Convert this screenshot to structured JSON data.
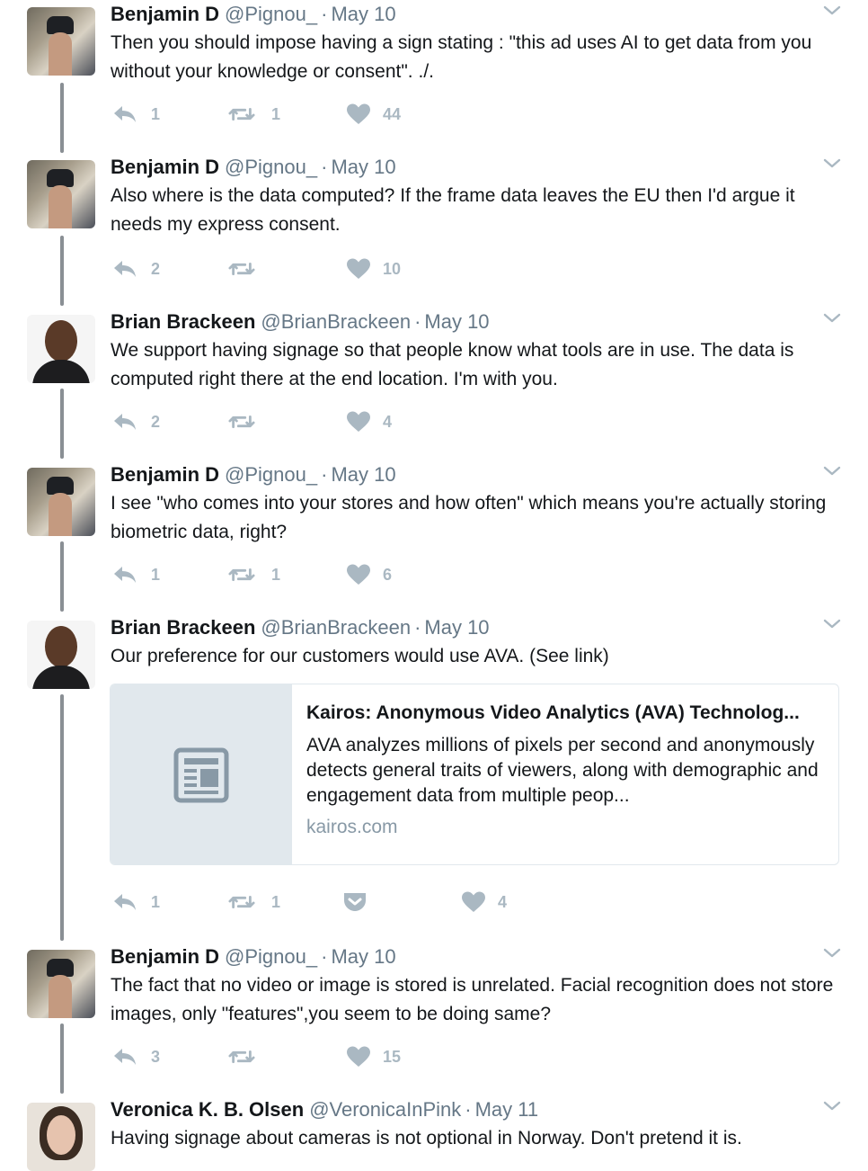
{
  "tweets": [
    {
      "name": "Benjamin D",
      "handle": "@Pignou_",
      "date": "May 10",
      "text": "Then you should impose having a sign stating : \"this ad uses AI to get data from you without your knowledge or consent\". ./.",
      "replies": "1",
      "retweets": "1",
      "likes": "44"
    },
    {
      "name": "Benjamin D",
      "handle": "@Pignou_",
      "date": "May 10",
      "text": "Also where is the data computed? If the frame data leaves the EU then I'd argue it needs my express consent.",
      "replies": "2",
      "retweets": "",
      "likes": "10"
    },
    {
      "name": "Brian Brackeen",
      "handle": "@BrianBrackeen",
      "date": "May 10",
      "text": "We support having signage so that people know what tools are in use. The data is computed right there at the end location. I'm with you.",
      "replies": "2",
      "retweets": "",
      "likes": "4"
    },
    {
      "name": "Benjamin D",
      "handle": "@Pignou_",
      "date": "May 10",
      "text": "I see \"who comes into your stores and how often\" which means you're actually storing biometric data, right?",
      "replies": "1",
      "retweets": "1",
      "likes": "6"
    },
    {
      "name": "Brian Brackeen",
      "handle": "@BrianBrackeen",
      "date": "May 10",
      "text": "Our preference for our customers would use AVA. (See link)",
      "replies": "1",
      "retweets": "1",
      "likes": "4",
      "card": {
        "title": "Kairos: Anonymous Video Analytics (AVA) Technolog...",
        "description": "AVA analyzes millions of pixels per second and anonymously detects general traits of viewers, along with demographic and engagement data from multiple peop...",
        "domain": "kairos.com"
      }
    },
    {
      "name": "Benjamin D",
      "handle": "@Pignou_",
      "date": "May 10",
      "text": "The fact that no video or image is stored is unrelated. Facial recognition does not store images, only \"features\",you seem to be doing same?",
      "replies": "3",
      "retweets": "",
      "likes": "15"
    },
    {
      "name": "Veronica K. B. Olsen",
      "handle": "@VeronicaInPink",
      "date": "May 11",
      "text": "Having signage about cameras is not optional in Norway. Don't pretend it is."
    }
  ],
  "separator": "·",
  "icons": {
    "reply": "reply-icon",
    "retweet": "retweet-icon",
    "like": "heart-icon",
    "pocket": "pocket-icon",
    "more": "chevron-down-icon",
    "card_placeholder": "article-icon"
  },
  "colors": {
    "action_gray": "#aab8c2",
    "meta_gray": "#657786",
    "thread_line": "#8a8f94"
  }
}
